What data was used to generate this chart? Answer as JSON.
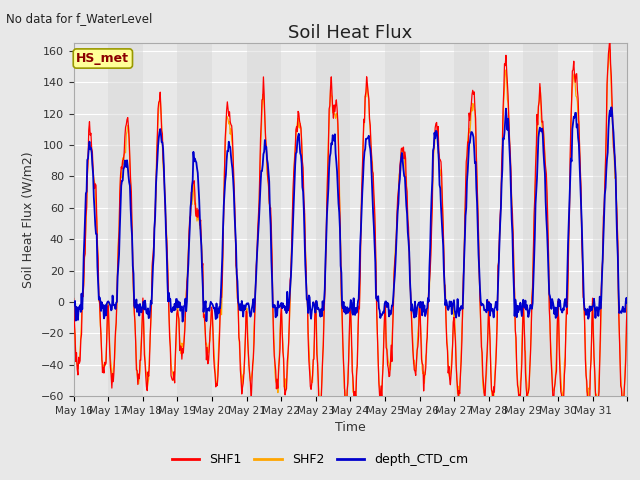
{
  "title": "Soil Heat Flux",
  "subtitle": "No data for f_WaterLevel",
  "ylabel": "Soil Heat Flux (W/m2)",
  "xlabel": "Time",
  "ylim": [
    -60,
    165
  ],
  "annotation": "HS_met",
  "legend_labels": [
    "SHF1",
    "SHF2",
    "depth_CTD_cm"
  ],
  "shf1_color": "#ff0000",
  "shf2_color": "#ffa500",
  "ctd_color": "#0000cc",
  "fig_bg_color": "#e8e8e8",
  "plot_bg_color": "#e8e8e8",
  "n_days": 16,
  "tick_labels": [
    "May 16",
    "May 17",
    "May 18",
    "May 19",
    "May 20",
    "May 21",
    "May 22",
    "May 23",
    "May 24",
    "May 25",
    "May 26",
    "May 27",
    "May 28",
    "May 29",
    "May 30",
    "May 31"
  ],
  "grid_color": "#ffffff",
  "title_fontsize": 13,
  "yticks": [
    -60,
    -40,
    -20,
    0,
    20,
    40,
    60,
    80,
    100,
    120,
    140,
    160
  ]
}
